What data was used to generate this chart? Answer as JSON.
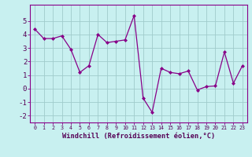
{
  "x": [
    0,
    1,
    2,
    3,
    4,
    5,
    6,
    7,
    8,
    9,
    10,
    11,
    12,
    13,
    14,
    15,
    16,
    17,
    18,
    19,
    20,
    21,
    22,
    23
  ],
  "y": [
    4.4,
    3.7,
    3.7,
    3.9,
    2.9,
    1.2,
    1.7,
    4.0,
    3.4,
    3.5,
    3.6,
    5.4,
    -0.7,
    -1.75,
    1.5,
    1.2,
    1.1,
    1.3,
    -0.1,
    0.15,
    0.2,
    2.7,
    0.4,
    1.7
  ],
  "line_color": "#880088",
  "marker": "D",
  "marker_size": 2.0,
  "bg_color": "#c8f0f0",
  "grid_color": "#a0cccc",
  "xlabel": "Windchill (Refroidissement éolien,°C)",
  "ylim": [
    -2.5,
    6.2
  ],
  "yticks": [
    -2,
    -1,
    0,
    1,
    2,
    3,
    4,
    5
  ],
  "xticks": [
    0,
    1,
    2,
    3,
    4,
    5,
    6,
    7,
    8,
    9,
    10,
    11,
    12,
    13,
    14,
    15,
    16,
    17,
    18,
    19,
    20,
    21,
    22,
    23
  ]
}
